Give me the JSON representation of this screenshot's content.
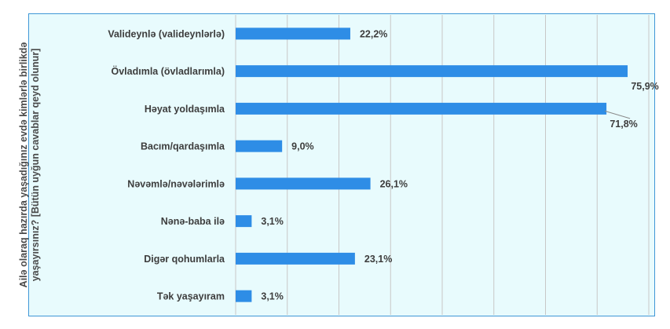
{
  "chart_data": {
    "type": "bar",
    "orientation": "horizontal",
    "ylabel": "Ailə olaraq hazırda yaşadığınız evdə kimlərlə birlikdə yaşayırsınız? [Bütün uyğun cavablar qeyd olunur]",
    "categories": [
      "Valideynlə (valideynlərlə)",
      "Övladımla (övladlarımla)",
      "Həyat yoldaşımla",
      "Bacım/qardaşımla",
      "Nəvəmlə/nəvələrimlə",
      "Nənə-baba ilə",
      "Digər qohumlarla",
      "Tək yaşayıram"
    ],
    "values": [
      22.2,
      75.9,
      71.8,
      9.0,
      26.1,
      3.1,
      23.1,
      3.1
    ],
    "value_labels": [
      "22,2%",
      "75,9%",
      "71,8%",
      "9,0%",
      "26,1%",
      "3,1%",
      "23,1%",
      "3,1%"
    ],
    "xlim": [
      0,
      80
    ],
    "grid": true,
    "colors": {
      "bar": "#2e8de6",
      "background": "#e8fbfd",
      "border": "#3f97d6",
      "grid": "#c7c7c7"
    }
  }
}
